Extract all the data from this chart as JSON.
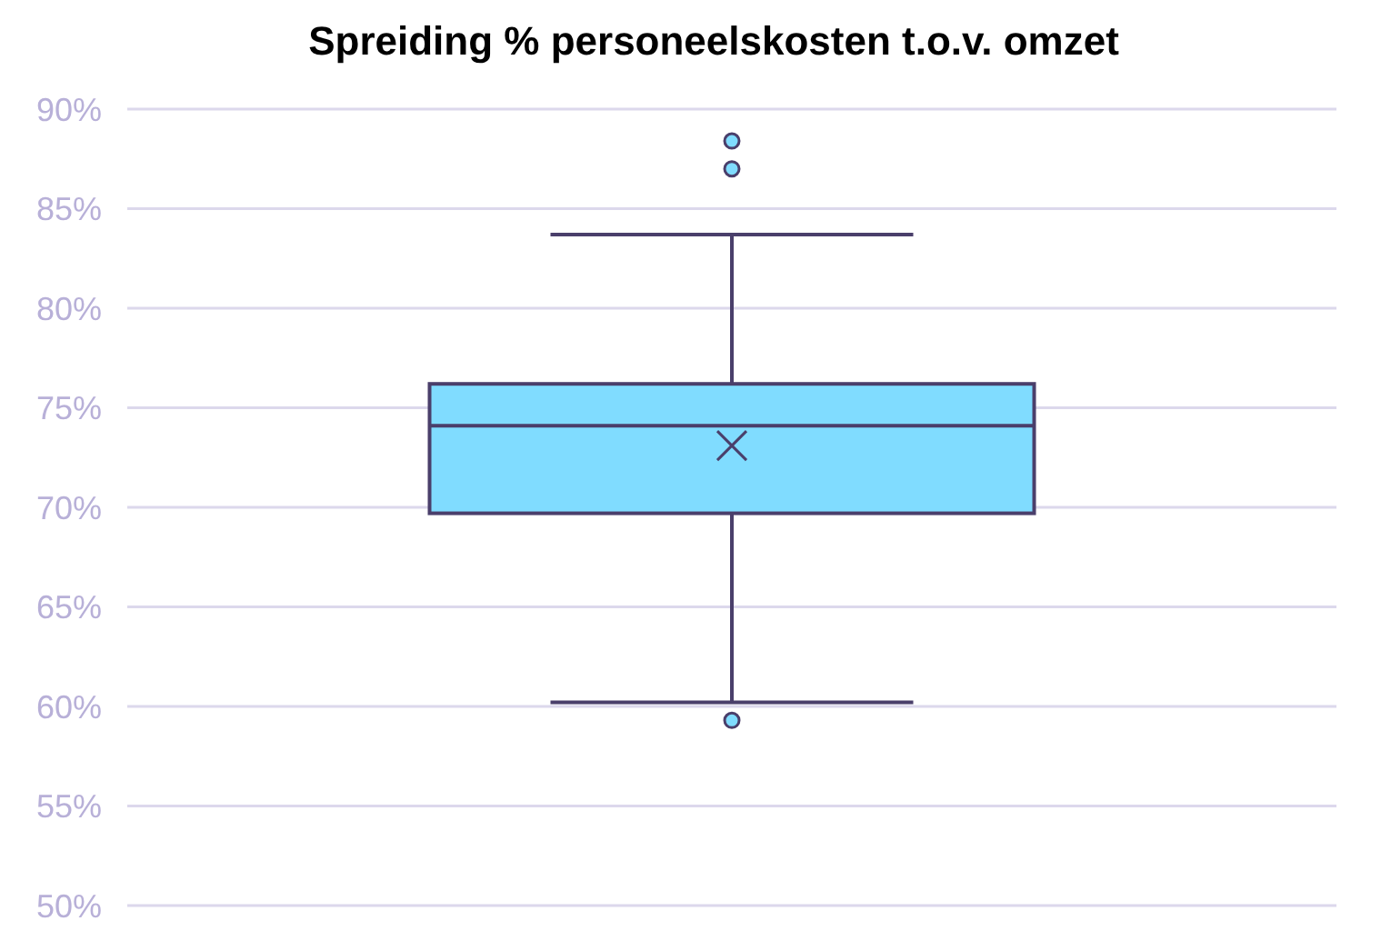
{
  "chart_data": {
    "type": "box",
    "title": "Spreiding % personeelskosten t.o.v. omzet",
    "categories": [
      null
    ],
    "color": "#80dcff",
    "boxes": [
      {
        "low": 60.2,
        "q1": 69.7,
        "median": 74.1,
        "q3": 76.2,
        "high": 83.7,
        "mean": 73.1,
        "outliers": [
          88.4,
          87.0,
          59.3
        ]
      }
    ],
    "ylim": [
      50,
      90
    ],
    "yticks": [
      {
        "value": 50,
        "label": "50%"
      },
      {
        "value": 55,
        "label": "55%"
      },
      {
        "value": 60,
        "label": "60%"
      },
      {
        "value": 65,
        "label": "65%"
      },
      {
        "value": 70,
        "label": "70%"
      },
      {
        "value": 75,
        "label": "75%"
      },
      {
        "value": 80,
        "label": "80%"
      },
      {
        "value": 85,
        "label": "85%"
      },
      {
        "value": 90,
        "label": "90%"
      }
    ],
    "grid": "y"
  }
}
